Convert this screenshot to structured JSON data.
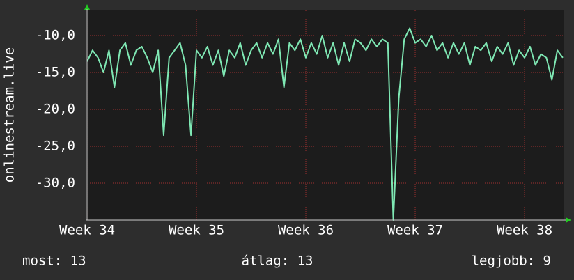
{
  "chart_data": {
    "type": "line",
    "y_label": "onlinestream.live",
    "x": [
      34.0,
      34.05,
      34.1,
      34.15,
      34.2,
      34.25,
      34.3,
      34.35,
      34.4,
      34.45,
      34.5,
      34.55,
      34.6,
      34.65,
      34.7,
      34.75,
      34.8,
      34.85,
      34.9,
      34.95,
      35.0,
      35.05,
      35.1,
      35.15,
      35.2,
      35.25,
      35.3,
      35.35,
      35.4,
      35.45,
      35.5,
      35.55,
      35.6,
      35.65,
      35.7,
      35.75,
      35.8,
      35.85,
      35.9,
      35.95,
      36.0,
      36.05,
      36.1,
      36.15,
      36.2,
      36.25,
      36.3,
      36.35,
      36.4,
      36.45,
      36.5,
      36.55,
      36.6,
      36.65,
      36.7,
      36.75,
      36.8,
      36.85,
      36.9,
      36.95,
      37.0,
      37.05,
      37.1,
      37.15,
      37.2,
      37.25,
      37.3,
      37.35,
      37.4,
      37.45,
      37.5,
      37.55,
      37.6,
      37.65,
      37.7,
      37.75,
      37.8,
      37.85,
      37.9,
      37.95,
      38.0,
      38.05,
      38.1,
      38.15,
      38.2,
      38.25,
      38.3,
      38.35
    ],
    "series": [
      {
        "color": "#7fe8b4",
        "values": [
          -13.5,
          -12,
          -13,
          -15,
          -12,
          -17,
          -12,
          -11,
          -14,
          -12,
          -11.5,
          -13,
          -15,
          -12,
          -23.5,
          -13,
          -12,
          -11,
          -14,
          -23.5,
          -12,
          -13,
          -11.5,
          -14,
          -12,
          -15.5,
          -12,
          -13,
          -11,
          -14,
          -12,
          -11,
          -13,
          -11,
          -12.5,
          -10.5,
          -17,
          -11,
          -12,
          -10.5,
          -13,
          -11,
          -12.5,
          -10,
          -13,
          -11,
          -14,
          -11,
          -13.5,
          -10.5,
          -11,
          -12,
          -10.5,
          -11.5,
          -10.5,
          -11,
          -35,
          -18.5,
          -10.5,
          -9,
          -11,
          -10.5,
          -11.5,
          -10,
          -12,
          -11,
          -13,
          -11,
          -12.5,
          -11,
          -14,
          -11.5,
          -12,
          -11,
          -13.5,
          -11.5,
          -12.5,
          -11,
          -14,
          -12,
          -13,
          -11.5,
          -14,
          -12.5,
          -13,
          -16,
          -12,
          -13
        ]
      }
    ],
    "xlim": [
      33.987,
      38.363
    ],
    "xticks": [
      {
        "value": 34,
        "label": "Week 34"
      },
      {
        "value": 35,
        "label": "Week 35"
      },
      {
        "value": 36,
        "label": "Week 36"
      },
      {
        "value": 37,
        "label": "Week 37"
      },
      {
        "value": 38,
        "label": "Week 38"
      }
    ],
    "ylim": [
      -35,
      -6.6
    ],
    "yticks": [
      {
        "value": -10,
        "label": "-10,0"
      },
      {
        "value": -15,
        "label": "-15,0"
      },
      {
        "value": -20,
        "label": "-20,0"
      },
      {
        "value": -25,
        "label": "-25,0"
      },
      {
        "value": -30,
        "label": "-30,0"
      }
    ],
    "grid": true,
    "summary": [
      "most: 13",
      "átlag: 13",
      "legjobb: 9"
    ]
  }
}
